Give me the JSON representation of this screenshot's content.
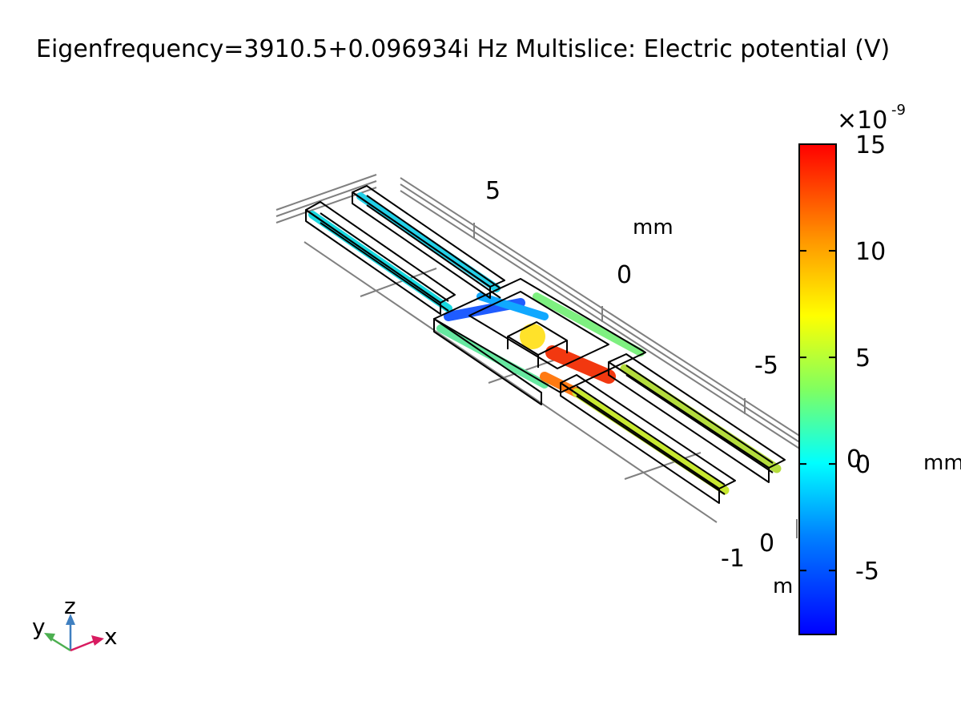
{
  "title": "Eigenfrequency=3910.5+0.096934i Hz  Multislice: Electric potential (V)",
  "colorbar": {
    "multiplier": "×10",
    "exponent": "-9",
    "min": -8,
    "max": 15,
    "ticks": [
      "15",
      "10",
      "5",
      "0",
      "-5"
    ],
    "tick_values": [
      15,
      10,
      5,
      0,
      -5
    ],
    "colormap": "rainbow"
  },
  "axes": {
    "y_ticks": [
      "5",
      "0",
      "-5"
    ],
    "y_unit": "mm",
    "x_ticks": [
      "0",
      "-1"
    ],
    "x_unit": "m",
    "z_tick": "0",
    "z_unit": "mm"
  },
  "triad": {
    "x": "x",
    "y": "y",
    "z": "z"
  },
  "colors": {
    "triad_x": "#d81b60",
    "triad_y": "#4caf50",
    "triad_z": "#3f7fc0",
    "grid": "#808080"
  }
}
